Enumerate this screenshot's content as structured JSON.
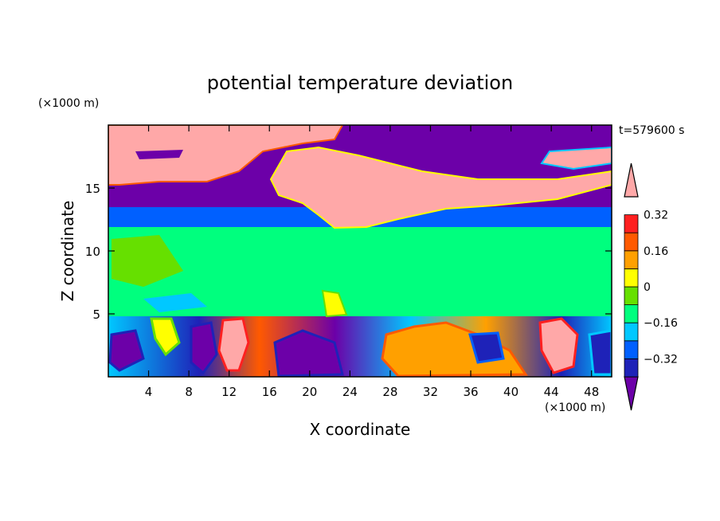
{
  "chart_data": {
    "type": "heatmap",
    "title": "potential temperature deviation",
    "xlabel": "X coordinate",
    "ylabel": "Z coordinate",
    "x_unit": "(×1000 m)",
    "y_unit": "(×1000 m)",
    "time_label": "t=579600 s",
    "xlim": [
      0,
      50
    ],
    "ylim": [
      0,
      20
    ],
    "x_ticks": [
      4,
      8,
      12,
      16,
      20,
      24,
      28,
      32,
      36,
      40,
      44,
      48
    ],
    "y_ticks": [
      5,
      10,
      15
    ],
    "colorbar": {
      "levels": [
        -0.4,
        -0.32,
        -0.24,
        -0.16,
        -0.08,
        0,
        0.08,
        0.16,
        0.24,
        0.32,
        0.4
      ],
      "colors": [
        "#6c00a8",
        "#1e22b8",
        "#0060ff",
        "#00c8ff",
        "#00ff7e",
        "#66e000",
        "#ffff00",
        "#ffa000",
        "#ff5a00",
        "#ff2020",
        "#ffa8a8"
      ],
      "labeled_ticks": [
        0.32,
        0.16,
        0,
        -0.16,
        -0.32
      ],
      "labels": [
        "0.32",
        "0.16",
        "0",
        "−0.16",
        "−0.32"
      ]
    },
    "field_summary": [
      {
        "z_range": [
          0,
          4.8
        ],
        "value": "mixed, from -0.4 to 0.4 (turbulent boundary layer)"
      },
      {
        "z_range": [
          4.8,
          12
        ],
        "value": "near 0 to -0.08"
      },
      {
        "z_range": [
          12,
          13.5
        ],
        "value": "around -0.16 to -0.32"
      },
      {
        "z_range": [
          13.5,
          19.7
        ],
        "value": "below -0.4 or above 0.4"
      }
    ]
  }
}
